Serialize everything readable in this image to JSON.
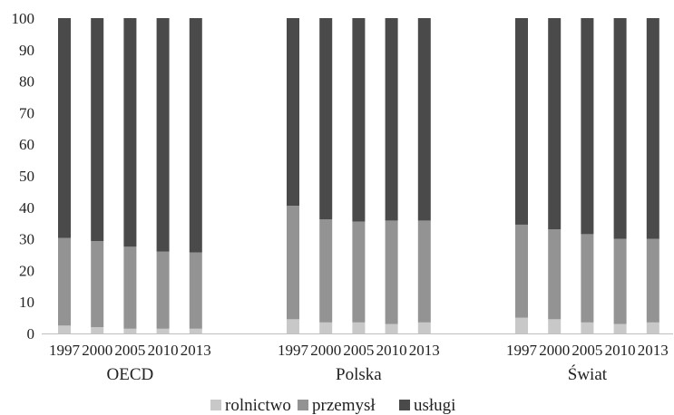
{
  "chart_data": {
    "type": "bar",
    "stacked": true,
    "title": "",
    "xlabel": "",
    "ylabel": "",
    "ylim": [
      0,
      100
    ],
    "yticks": [
      0,
      10,
      20,
      30,
      40,
      50,
      60,
      70,
      80,
      90,
      100
    ],
    "grid": false,
    "legend_position": "bottom",
    "groups": [
      {
        "name": "OECD",
        "categories": [
          "1997",
          "2000",
          "2005",
          "2010",
          "2013"
        ],
        "series": [
          {
            "name": "rolnictwo",
            "values": [
              2.5,
              2,
              1.5,
              1.5,
              1.5
            ]
          },
          {
            "name": "przemysł",
            "values": [
              27.8,
              27.3,
              26,
              24.5,
              24.2
            ]
          },
          {
            "name": "usługi",
            "values": [
              69.7,
              70.7,
              72.5,
              74,
              74.3
            ]
          }
        ]
      },
      {
        "name": "Polska",
        "categories": [
          "1997",
          "2000",
          "2005",
          "2010",
          "2013"
        ],
        "series": [
          {
            "name": "rolnictwo",
            "values": [
              4.5,
              3.5,
              3.5,
              3,
              3.5
            ]
          },
          {
            "name": "przemysł",
            "values": [
              36,
              32.7,
              32,
              32.8,
              32.3
            ]
          },
          {
            "name": "usługi",
            "values": [
              59.5,
              63.8,
              64.5,
              64.2,
              64.2
            ]
          }
        ]
      },
      {
        "name": "Świat",
        "categories": [
          "1997",
          "2000",
          "2005",
          "2010",
          "2013"
        ],
        "series": [
          {
            "name": "rolnictwo",
            "values": [
              5,
              4.5,
              3.5,
              3,
              3.5
            ]
          },
          {
            "name": "przemysł",
            "values": [
              29.5,
              28.5,
              28,
              27,
              26.5
            ]
          },
          {
            "name": "usługi",
            "values": [
              65.5,
              67,
              68.5,
              70,
              70
            ]
          }
        ]
      }
    ],
    "colors": {
      "rolnictwo": "#c8c8c8",
      "przemysł": "#939393",
      "usługi": "#4a4a4a",
      "axis": "#bfbfbf",
      "text": "#222222"
    }
  }
}
